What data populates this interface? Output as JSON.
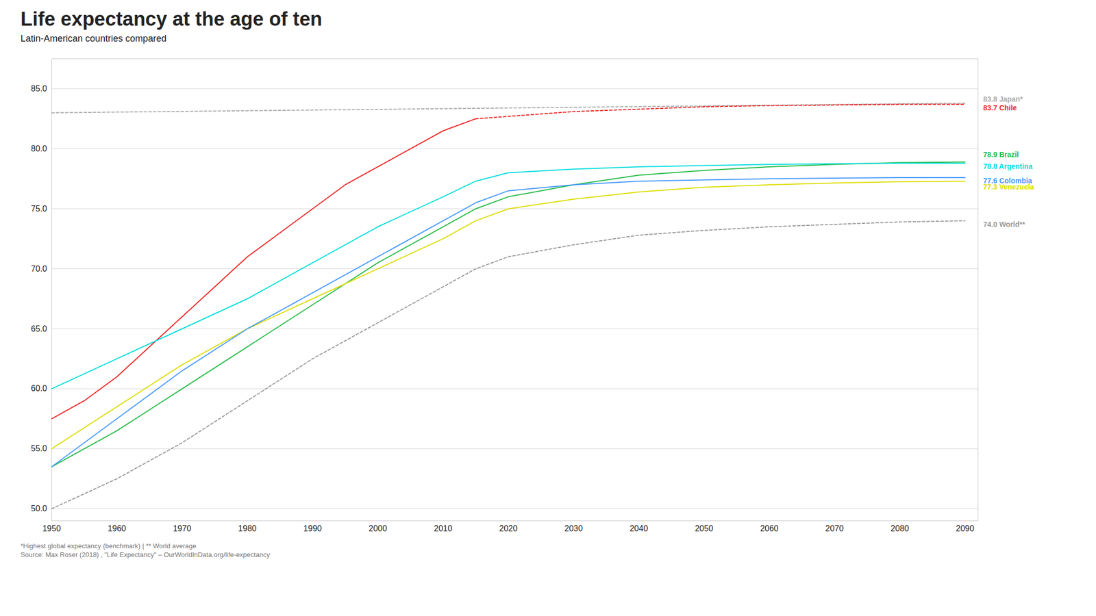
{
  "chart_data": {
    "type": "line",
    "title": "Life expectancy at the age of ten",
    "subtitle": "Latin-American countries compared",
    "footnotes": [
      "*Highest global expectancy (benchmark) | ** World average",
      "Source: Max Roser (2018) , \"Life Expectancy\" – OurWorldInData.org/life-expectancy"
    ],
    "xlim": [
      1950,
      2092
    ],
    "xticks": [
      1950,
      1960,
      1970,
      1980,
      1990,
      2000,
      2010,
      2020,
      2030,
      2040,
      2050,
      2060,
      2070,
      2080,
      2090
    ],
    "ylim": [
      49.0,
      87.5
    ],
    "yticks": [
      {
        "value": 50.0,
        "label": "50.0"
      },
      {
        "value": 55.0,
        "label": "55.0"
      },
      {
        "value": 60.0,
        "label": "60.0"
      },
      {
        "value": 65.0,
        "label": "65.0"
      },
      {
        "value": 70.0,
        "label": "70.0"
      },
      {
        "value": 75.0,
        "label": "75.0"
      },
      {
        "value": 80.0,
        "label": "80.0"
      },
      {
        "value": 85.0,
        "label": "85.0"
      }
    ],
    "grid": true,
    "series": [
      {
        "name": "World",
        "color": "#999999",
        "line_style": "dashed",
        "x": [
          1950,
          1960,
          1970,
          1980,
          1990,
          2000,
          2010,
          2015,
          2020,
          2030,
          2040,
          2050,
          2060,
          2070,
          2080,
          2090
        ],
        "values": [
          50.0,
          52.5,
          55.5,
          59.0,
          62.5,
          65.5,
          68.5,
          70.0,
          71.0,
          72.0,
          72.8,
          73.2,
          73.5,
          73.7,
          73.9,
          74.0
        ]
      },
      {
        "name": "Japan",
        "color": "#aaaaaa",
        "line_style": "dashed",
        "x": [
          1950,
          2090
        ],
        "values": [
          83.0,
          83.8
        ]
      },
      {
        "name": "Brazil",
        "color": "#22bb44",
        "line_style": "solid",
        "x": [
          1950,
          1960,
          1970,
          1980,
          1990,
          2000,
          2010,
          2015,
          2020,
          2030,
          2040,
          2050,
          2060,
          2070,
          2080,
          2090
        ],
        "values": [
          53.5,
          56.5,
          60.0,
          63.5,
          67.0,
          70.5,
          73.5,
          75.0,
          76.0,
          77.0,
          77.8,
          78.2,
          78.5,
          78.7,
          78.85,
          78.9
        ]
      },
      {
        "name": "Venezuela",
        "color": "#dddd00",
        "line_style": "solid",
        "x": [
          1950,
          1960,
          1970,
          1980,
          1990,
          2000,
          2010,
          2015,
          2020,
          2030,
          2040,
          2050,
          2060,
          2070,
          2080,
          2090
        ],
        "values": [
          55.0,
          58.5,
          62.0,
          65.0,
          67.5,
          70.0,
          72.5,
          74.0,
          75.0,
          75.8,
          76.4,
          76.8,
          77.0,
          77.15,
          77.25,
          77.3
        ]
      },
      {
        "name": "Colombia",
        "color": "#4499ff",
        "line_style": "solid",
        "x": [
          1950,
          1960,
          1970,
          1980,
          1990,
          2000,
          2010,
          2015,
          2020,
          2030,
          2040,
          2050,
          2060,
          2070,
          2080,
          2090
        ],
        "values": [
          53.5,
          57.5,
          61.5,
          65.0,
          68.0,
          71.0,
          74.0,
          75.5,
          76.5,
          77.0,
          77.3,
          77.4,
          77.5,
          77.55,
          77.6,
          77.6
        ]
      },
      {
        "name": "Chile",
        "color": "#ee2222",
        "line_style": "solid",
        "x": [
          1950,
          1955,
          1960,
          1965,
          1970,
          1975,
          1980,
          1985,
          1990,
          1995,
          2000,
          2005,
          2010,
          2015
        ],
        "values": [
          57.5,
          59.0,
          61.0,
          63.5,
          66.0,
          68.5,
          71.0,
          73.0,
          75.0,
          77.0,
          78.5,
          80.0,
          81.5,
          82.5
        ]
      },
      {
        "name": "Chile",
        "color": "#ee2222",
        "line_style": "dashed",
        "x": [
          2015,
          2020,
          2025,
          2030,
          2035,
          2040,
          2045,
          2050,
          2055,
          2060,
          2065,
          2070,
          2075,
          2080,
          2085,
          2090
        ],
        "values": [
          82.5,
          82.7,
          82.9,
          83.1,
          83.2,
          83.3,
          83.4,
          83.5,
          83.55,
          83.6,
          83.62,
          83.65,
          83.68,
          83.7,
          83.7,
          83.7
        ]
      },
      {
        "name": "Argentina",
        "color": "#00dddd",
        "line_style": "solid",
        "x": [
          1950,
          1960,
          1970,
          1980,
          1990,
          2000,
          2010,
          2015,
          2020,
          2030,
          2040,
          2050,
          2060,
          2070,
          2080,
          2090
        ],
        "values": [
          60.0,
          62.5,
          65.0,
          67.5,
          70.5,
          73.5,
          76.0,
          77.3,
          78.0,
          78.3,
          78.5,
          78.6,
          78.7,
          78.75,
          78.8,
          78.8
        ]
      }
    ],
    "annotations": [
      {
        "text": "83.8 Japan*",
        "color": "#aaaaaa",
        "y": 84.1
      },
      {
        "text": "83.7 Chile",
        "color": "#ee2222",
        "y": 83.4
      },
      {
        "text": "78.9 Brazil",
        "color": "#22bb44",
        "y": 79.5
      },
      {
        "text": "78.8 Argentina",
        "color": "#00dddd",
        "y": 78.5
      },
      {
        "text": "77.6 Colombia",
        "color": "#4499ff",
        "y": 77.3
      },
      {
        "text": "77.3 Venezuela",
        "color": "#dddd00",
        "y": 76.8
      },
      {
        "text": "74.0 World**",
        "color": "#999999",
        "y": 73.7
      }
    ]
  }
}
